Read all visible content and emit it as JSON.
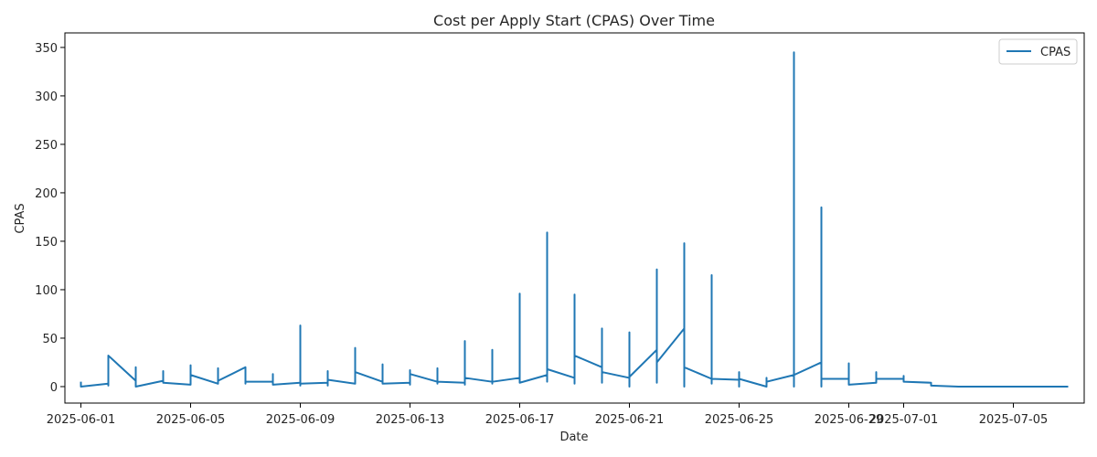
{
  "chart_data": {
    "type": "line",
    "title": "Cost per Apply Start (CPAS) Over Time",
    "xlabel": "Date",
    "ylabel": "CPAS",
    "x_start": "2025-06-01",
    "x_end": "2025-07-07",
    "xlim": [
      "2025-05-31T10:00",
      "2025-07-07T14:00"
    ],
    "ylim": [
      -17,
      365
    ],
    "x_ticks": [
      "2025-06-01",
      "2025-06-05",
      "2025-06-09",
      "2025-06-13",
      "2025-06-17",
      "2025-06-21",
      "2025-06-25",
      "2025-06-29",
      "2025-07-01",
      "2025-07-05"
    ],
    "y_ticks": [
      0,
      50,
      100,
      150,
      200,
      250,
      300,
      350
    ],
    "grid": false,
    "legend": {
      "position": "top-right",
      "entries": [
        "CPAS"
      ]
    },
    "series": [
      {
        "name": "CPAS",
        "color": "#1f77b4",
        "points": [
          [
            "2025-06-01T00:00",
            5
          ],
          [
            "2025-06-01T00:00",
            0
          ],
          [
            "2025-06-02T00:00",
            3
          ],
          [
            "2025-06-02T00:00",
            1
          ],
          [
            "2025-06-02T00:00",
            32
          ],
          [
            "2025-06-03T00:00",
            6
          ],
          [
            "2025-06-03T00:00",
            20
          ],
          [
            "2025-06-03T00:00",
            0
          ],
          [
            "2025-06-04T00:00",
            6
          ],
          [
            "2025-06-04T00:00",
            16
          ],
          [
            "2025-06-04T00:00",
            4
          ],
          [
            "2025-06-05T00:00",
            2
          ],
          [
            "2025-06-05T00:00",
            22
          ],
          [
            "2025-06-05T00:00",
            12
          ],
          [
            "2025-06-06T00:00",
            3
          ],
          [
            "2025-06-06T00:00",
            19
          ],
          [
            "2025-06-06T00:00",
            6
          ],
          [
            "2025-06-07T00:00",
            20
          ],
          [
            "2025-06-07T00:00",
            3
          ],
          [
            "2025-06-07T00:00",
            5
          ],
          [
            "2025-06-08T00:00",
            5
          ],
          [
            "2025-06-08T00:00",
            13
          ],
          [
            "2025-06-08T00:00",
            2
          ],
          [
            "2025-06-09T00:00",
            4
          ],
          [
            "2025-06-09T00:00",
            63
          ],
          [
            "2025-06-09T00:00",
            1
          ],
          [
            "2025-06-09T00:00",
            3
          ],
          [
            "2025-06-10T00:00",
            4
          ],
          [
            "2025-06-10T00:00",
            16
          ],
          [
            "2025-06-10T00:00",
            1
          ],
          [
            "2025-06-10T00:00",
            7
          ],
          [
            "2025-06-11T00:00",
            3
          ],
          [
            "2025-06-11T00:00",
            40
          ],
          [
            "2025-06-11T00:00",
            15
          ],
          [
            "2025-06-12T00:00",
            5
          ],
          [
            "2025-06-12T00:00",
            23
          ],
          [
            "2025-06-12T00:00",
            3
          ],
          [
            "2025-06-13T00:00",
            4
          ],
          [
            "2025-06-13T00:00",
            2
          ],
          [
            "2025-06-13T00:00",
            17
          ],
          [
            "2025-06-13T00:00",
            13
          ],
          [
            "2025-06-14T00:00",
            5
          ],
          [
            "2025-06-14T00:00",
            19
          ],
          [
            "2025-06-14T00:00",
            3
          ],
          [
            "2025-06-14T00:00",
            5
          ],
          [
            "2025-06-15T00:00",
            4
          ],
          [
            "2025-06-15T00:00",
            47
          ],
          [
            "2025-06-15T00:00",
            2
          ],
          [
            "2025-06-15T00:00",
            9
          ],
          [
            "2025-06-16T00:00",
            5
          ],
          [
            "2025-06-16T00:00",
            38
          ],
          [
            "2025-06-16T00:00",
            3
          ],
          [
            "2025-06-16T00:00",
            5
          ],
          [
            "2025-06-17T00:00",
            9
          ],
          [
            "2025-06-17T00:00",
            96
          ],
          [
            "2025-06-17T00:00",
            4
          ],
          [
            "2025-06-18T00:00",
            12
          ],
          [
            "2025-06-18T00:00",
            159
          ],
          [
            "2025-06-18T00:00",
            5
          ],
          [
            "2025-06-18T00:00",
            18
          ],
          [
            "2025-06-19T00:00",
            9
          ],
          [
            "2025-06-19T00:00",
            95
          ],
          [
            "2025-06-19T00:00",
            3
          ],
          [
            "2025-06-19T00:00",
            32
          ],
          [
            "2025-06-20T00:00",
            20
          ],
          [
            "2025-06-20T00:00",
            60
          ],
          [
            "2025-06-20T00:00",
            4
          ],
          [
            "2025-06-20T00:00",
            15
          ],
          [
            "2025-06-21T00:00",
            9
          ],
          [
            "2025-06-21T00:00",
            56
          ],
          [
            "2025-06-21T00:00",
            0
          ],
          [
            "2025-06-21T00:00",
            10
          ],
          [
            "2025-06-22T00:00",
            38
          ],
          [
            "2025-06-22T00:00",
            121
          ],
          [
            "2025-06-22T00:00",
            4
          ],
          [
            "2025-06-22T00:00",
            25
          ],
          [
            "2025-06-23T00:00",
            60
          ],
          [
            "2025-06-23T00:00",
            148
          ],
          [
            "2025-06-23T00:00",
            0
          ],
          [
            "2025-06-23T00:00",
            20
          ],
          [
            "2025-06-24T00:00",
            8
          ],
          [
            "2025-06-24T00:00",
            115
          ],
          [
            "2025-06-24T00:00",
            3
          ],
          [
            "2025-06-24T00:00",
            8
          ],
          [
            "2025-06-25T00:00",
            7
          ],
          [
            "2025-06-25T00:00",
            15
          ],
          [
            "2025-06-25T00:00",
            0
          ],
          [
            "2025-06-25T00:00",
            8
          ],
          [
            "2025-06-26T00:00",
            0
          ],
          [
            "2025-06-26T00:00",
            9
          ],
          [
            "2025-06-26T00:00",
            5
          ],
          [
            "2025-06-27T00:00",
            12
          ],
          [
            "2025-06-27T00:00",
            345
          ],
          [
            "2025-06-27T00:00",
            0
          ],
          [
            "2025-06-27T00:00",
            12
          ],
          [
            "2025-06-28T00:00",
            25
          ],
          [
            "2025-06-28T00:00",
            185
          ],
          [
            "2025-06-28T00:00",
            0
          ],
          [
            "2025-06-28T00:00",
            8
          ],
          [
            "2025-06-29T00:00",
            8
          ],
          [
            "2025-06-29T00:00",
            24
          ],
          [
            "2025-06-29T00:00",
            2
          ],
          [
            "2025-06-30T00:00",
            4
          ],
          [
            "2025-06-30T00:00",
            15
          ],
          [
            "2025-06-30T00:00",
            8
          ],
          [
            "2025-07-01T00:00",
            8
          ],
          [
            "2025-07-01T00:00",
            11
          ],
          [
            "2025-07-01T00:00",
            5
          ],
          [
            "2025-07-02T00:00",
            4
          ],
          [
            "2025-07-02T00:00",
            1
          ],
          [
            "2025-07-03T00:00",
            0
          ],
          [
            "2025-07-04T00:00",
            0
          ],
          [
            "2025-07-05T00:00",
            0
          ],
          [
            "2025-07-06T00:00",
            0
          ],
          [
            "2025-07-07T00:00",
            0
          ]
        ]
      }
    ]
  }
}
